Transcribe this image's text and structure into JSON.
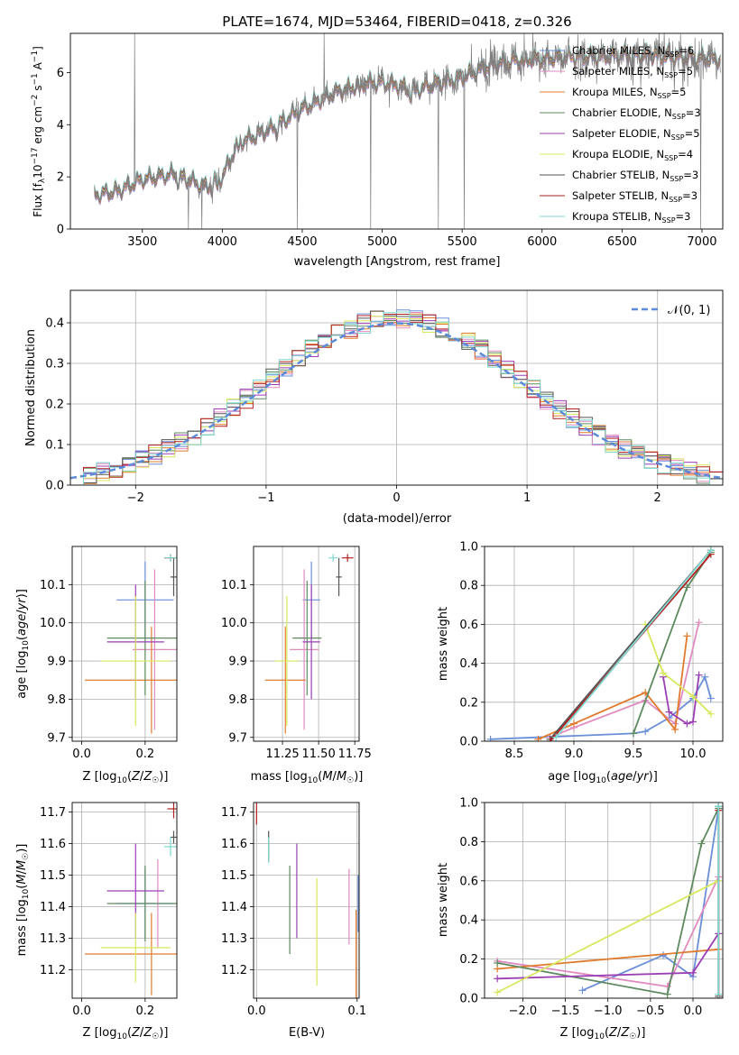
{
  "figure_title": "PLATE=1674, MJD=53464, FIBERID=0418, z=0.326",
  "colors": {
    "Chabrier MILES": "#6a8fd8",
    "Salpeter MILES": "#e08bc0",
    "Kroupa MILES": "#e07b2e",
    "Chabrier ELODIE": "#5e8a60",
    "Salpeter ELODIE": "#9b3fb5",
    "Kroupa ELODIE": "#d8e85c",
    "Chabrier STELIB": "#555555",
    "Salpeter STELIB": "#b22222",
    "Kroupa STELIB": "#7fd8d0",
    "observed": "#7f7f7f",
    "gaussian": "#5b8bd9"
  },
  "chart_data": [
    {
      "id": "spectrum",
      "type": "line",
      "title": "PLATE=1674, MJD=53464, FIBERID=0418, z=0.326",
      "xlabel": "wavelength [Angstrom, rest frame]",
      "ylabel": "Flux [f_λ 10^-17 erg cm^-2 s^-1 A^-1]",
      "xlim": [
        3050,
        7130
      ],
      "ylim": [
        0,
        7.5
      ],
      "xticks": [
        3500,
        4000,
        4500,
        5000,
        5500,
        6000,
        6500,
        7000
      ],
      "yticks": [
        0,
        2,
        4,
        6
      ],
      "grid": false,
      "legend_position": "top-right",
      "legend": [
        {
          "label": "Chabrier MILES, N_SSP=6",
          "color": "#6a8fd8"
        },
        {
          "label": "Salpeter MILES, N_SSP=5",
          "color": "#e08bc0"
        },
        {
          "label": "Kroupa MILES, N_SSP=5",
          "color": "#e07b2e"
        },
        {
          "label": "Chabrier ELODIE, N_SSP=3",
          "color": "#5e8a60"
        },
        {
          "label": "Salpeter ELODIE, N_SSP=5",
          "color": "#9b3fb5"
        },
        {
          "label": "Kroupa ELODIE, N_SSP=4",
          "color": "#d8e85c"
        },
        {
          "label": "Chabrier STELIB, N_SSP=3",
          "color": "#555555"
        },
        {
          "label": "Salpeter STELIB, N_SSP=3",
          "color": "#b22222"
        },
        {
          "label": "Kroupa STELIB, N_SSP=3",
          "color": "#7fd8d0"
        }
      ],
      "continuum": {
        "x": [
          3200,
          3350,
          3500,
          3700,
          3900,
          4000,
          4100,
          4300,
          4500,
          4700,
          4800,
          4900,
          5000,
          5100,
          5200,
          5300,
          5500,
          5700,
          5900,
          6000,
          6200,
          6400,
          6600,
          6800,
          7100
        ],
        "y": [
          1.3,
          1.45,
          1.9,
          2.1,
          1.6,
          2.0,
          3.3,
          3.8,
          4.6,
          5.2,
          5.4,
          5.6,
          5.6,
          5.5,
          5.3,
          5.5,
          5.8,
          6.3,
          6.5,
          6.5,
          6.6,
          6.6,
          6.7,
          6.6,
          6.5
        ]
      }
    },
    {
      "id": "residuals",
      "type": "line",
      "xlabel": "(data-model)/error",
      "ylabel": "Normed distribution",
      "xlim": [
        -2.5,
        2.5
      ],
      "ylim": [
        0,
        0.48
      ],
      "xticks": [
        -2,
        -1,
        0,
        1,
        2
      ],
      "yticks": [
        0.0,
        0.1,
        0.2,
        0.3,
        0.4
      ],
      "grid": true,
      "legend_position": "top-right",
      "legend": [
        {
          "label": "𝒩(0, 1)",
          "color": "#5b8bd9",
          "dashed": true
        }
      ],
      "gaussian": {
        "mean": 0,
        "sigma": 1
      }
    },
    {
      "id": "age-vs-Z",
      "type": "scatter",
      "xlabel": "Z [log10(Z/Z☉)]",
      "ylabel": "age  [log10(age/yr)]",
      "xlim": [
        -0.03,
        0.3
      ],
      "ylim": [
        9.69,
        10.2
      ],
      "xticks": [
        0.0,
        0.2
      ],
      "yticks": [
        9.7,
        9.8,
        9.9,
        10.0,
        10.1
      ],
      "grid": true,
      "series": [
        {
          "model": "Chabrier MILES",
          "x": 0.2,
          "xerr": 0.09,
          "y": 10.06,
          "yerr": 0.1
        },
        {
          "model": "Salpeter MILES",
          "x": 0.23,
          "xerr": 0.07,
          "y": 9.93,
          "yerr": 0.21
        },
        {
          "model": "Kroupa MILES",
          "x": 0.22,
          "xerr": 0.21,
          "y": 9.85,
          "yerr": 0.14
        },
        {
          "model": "Chabrier ELODIE",
          "x": 0.2,
          "xerr": 0.12,
          "y": 9.96,
          "yerr": 0.15
        },
        {
          "model": "Salpeter ELODIE",
          "x": 0.17,
          "xerr": 0.09,
          "y": 9.95,
          "yerr": 0.15
        },
        {
          "model": "Kroupa ELODIE",
          "x": 0.17,
          "xerr": 0.11,
          "y": 9.9,
          "yerr": 0.17
        },
        {
          "model": "Chabrier STELIB",
          "x": 0.29,
          "xerr": 0.01,
          "y": 10.12,
          "yerr": 0.05
        },
        {
          "model": "Salpeter STELIB",
          "x": 0.28,
          "xerr": 0.02,
          "y": 10.17,
          "yerr": 0.01
        },
        {
          "model": "Kroupa STELIB",
          "x": 0.28,
          "xerr": 0.02,
          "y": 10.17,
          "yerr": 0.01
        }
      ]
    },
    {
      "id": "age-vs-mass",
      "type": "scatter",
      "xlabel": "mass [log10(M/M☉)]",
      "ylabel": "",
      "xlim": [
        11.05,
        11.78
      ],
      "ylim": [
        9.69,
        10.2
      ],
      "xticks": [
        11.25,
        11.5,
        11.75
      ],
      "yticks": [
        9.7,
        9.8,
        9.9,
        10.0,
        10.1
      ],
      "grid": true,
      "series": [
        {
          "model": "Chabrier MILES",
          "x": 11.45,
          "xerr": 0.06,
          "y": 10.06,
          "yerr": 0.1
        },
        {
          "model": "Salpeter MILES",
          "x": 11.4,
          "xerr": 0.1,
          "y": 9.93,
          "yerr": 0.21
        },
        {
          "model": "Kroupa MILES",
          "x": 11.27,
          "xerr": 0.14,
          "y": 9.85,
          "yerr": 0.14
        },
        {
          "model": "Chabrier ELODIE",
          "x": 11.42,
          "xerr": 0.1,
          "y": 9.96,
          "yerr": 0.15
        },
        {
          "model": "Salpeter ELODIE",
          "x": 11.45,
          "xerr": 0.06,
          "y": 9.95,
          "yerr": 0.15
        },
        {
          "model": "Kroupa ELODIE",
          "x": 11.28,
          "xerr": 0.08,
          "y": 9.9,
          "yerr": 0.17
        },
        {
          "model": "Chabrier STELIB",
          "x": 11.64,
          "xerr": 0.02,
          "y": 10.12,
          "yerr": 0.05
        },
        {
          "model": "Salpeter STELIB",
          "x": 11.7,
          "xerr": 0.04,
          "y": 10.17,
          "yerr": 0.01
        },
        {
          "model": "Kroupa STELIB",
          "x": 11.6,
          "xerr": 0.03,
          "y": 10.17,
          "yerr": 0.01
        }
      ]
    },
    {
      "id": "weight-vs-age",
      "type": "line",
      "xlabel": "age  [log10(age/yr)]",
      "ylabel": "mass weight",
      "xlim": [
        8.25,
        10.25
      ],
      "ylim": [
        0,
        1
      ],
      "xticks": [
        8.5,
        9.0,
        9.5,
        10.0
      ],
      "yticks": [
        0.0,
        0.2,
        0.4,
        0.6,
        0.8,
        1.0
      ],
      "grid": true,
      "series": [
        {
          "model": "Chabrier MILES",
          "x": [
            8.3,
            9.5,
            9.6,
            9.8,
            10.0,
            10.1,
            10.15
          ],
          "y": [
            0.01,
            0.04,
            0.05,
            0.12,
            0.22,
            0.33,
            0.22
          ]
        },
        {
          "model": "Salpeter MILES",
          "x": [
            8.8,
            9.0,
            9.6,
            9.85,
            10.05
          ],
          "y": [
            0.02,
            0.07,
            0.21,
            0.09,
            0.61
          ]
        },
        {
          "model": "Kroupa MILES",
          "x": [
            8.7,
            9.0,
            9.6,
            9.85,
            9.95
          ],
          "y": [
            0.01,
            0.09,
            0.25,
            0.06,
            0.54
          ]
        },
        {
          "model": "Chabrier ELODIE",
          "x": [
            9.5,
            9.95,
            10.15
          ],
          "y": [
            0.04,
            0.79,
            0.97
          ]
        },
        {
          "model": "Salpeter ELODIE",
          "x": [
            9.75,
            9.8,
            9.95,
            10.0,
            10.05
          ],
          "y": [
            0.33,
            0.15,
            0.09,
            0.1,
            0.34
          ]
        },
        {
          "model": "Kroupa ELODIE",
          "x": [
            9.6,
            9.75,
            10.0,
            10.15
          ],
          "y": [
            0.6,
            0.35,
            0.23,
            0.14
          ]
        },
        {
          "model": "Chabrier STELIB",
          "x": [
            8.8,
            10.15
          ],
          "y": [
            0.01,
            0.98
          ]
        },
        {
          "model": "Salpeter STELIB",
          "x": [
            8.8,
            10.15
          ],
          "y": [
            0.0,
            0.96
          ]
        },
        {
          "model": "Kroupa STELIB",
          "x": [
            8.85,
            10.15
          ],
          "y": [
            0.02,
            0.98
          ]
        }
      ]
    },
    {
      "id": "mass-vs-Z",
      "type": "scatter",
      "xlabel": "Z [log10(Z/Z☉)]",
      "ylabel": "mass [log10(M/M☉)]",
      "xlim": [
        -0.03,
        0.3
      ],
      "ylim": [
        11.11,
        11.73
      ],
      "xticks": [
        0.0,
        0.2
      ],
      "yticks": [
        11.2,
        11.3,
        11.4,
        11.5,
        11.6,
        11.7
      ],
      "grid": true,
      "series": [
        {
          "model": "Chabrier MILES",
          "x": 0.2,
          "xerr": 0.09,
          "y": 11.41,
          "yerr": 0.11
        },
        {
          "model": "Salpeter MILES",
          "x": 0.24,
          "xerr": 0.0,
          "y": 11.41,
          "yerr": 0.14
        },
        {
          "model": "Kroupa MILES",
          "x": 0.22,
          "xerr": 0.21,
          "y": 11.25,
          "yerr": 0.13
        },
        {
          "model": "Chabrier ELODIE",
          "x": 0.2,
          "xerr": 0.12,
          "y": 11.41,
          "yerr": 0.12
        },
        {
          "model": "Salpeter ELODIE",
          "x": 0.17,
          "xerr": 0.09,
          "y": 11.45,
          "yerr": 0.15
        },
        {
          "model": "Kroupa ELODIE",
          "x": 0.17,
          "xerr": 0.11,
          "y": 11.27,
          "yerr": 0.11
        },
        {
          "model": "Chabrier STELIB",
          "x": 0.29,
          "xerr": 0.01,
          "y": 11.62,
          "yerr": 0.02
        },
        {
          "model": "Salpeter STELIB",
          "x": 0.29,
          "xerr": 0.02,
          "y": 11.71,
          "yerr": 0.03
        },
        {
          "model": "Kroupa STELIB",
          "x": 0.28,
          "xerr": 0.02,
          "y": 11.59,
          "yerr": 0.03
        }
      ]
    },
    {
      "id": "mass-vs-ebv",
      "type": "scatter",
      "xlabel": "E(B-V)",
      "ylabel": "",
      "xlim": [
        -0.003,
        0.102
      ],
      "ylim": [
        11.11,
        11.73
      ],
      "xticks": [
        0.0,
        0.1
      ],
      "yticks": [
        11.2,
        11.3,
        11.4,
        11.5,
        11.6,
        11.7
      ],
      "grid": true,
      "series": [
        {
          "model": "Chabrier MILES",
          "x": 0.101,
          "y": 11.41,
          "yerr": 0.09
        },
        {
          "model": "Salpeter MILES",
          "x": 0.092,
          "y": 11.4,
          "yerr": 0.12
        },
        {
          "model": "Kroupa MILES",
          "x": 0.099,
          "y": 11.25,
          "yerr": 0.14
        },
        {
          "model": "Chabrier ELODIE",
          "x": 0.033,
          "y": 11.39,
          "yerr": 0.14
        },
        {
          "model": "Salpeter ELODIE",
          "x": 0.04,
          "y": 11.45,
          "yerr": 0.15
        },
        {
          "model": "Kroupa ELODIE",
          "x": 0.06,
          "y": 11.32,
          "yerr": 0.17
        },
        {
          "model": "Chabrier STELIB",
          "x": 0.012,
          "y": 11.59,
          "yerr": 0.05
        },
        {
          "model": "Salpeter STELIB",
          "x": 0.0,
          "y": 11.7,
          "yerr": 0.04
        },
        {
          "model": "Kroupa STELIB",
          "x": 0.012,
          "y": 11.58,
          "yerr": 0.04
        }
      ]
    },
    {
      "id": "weight-vs-Z",
      "type": "line",
      "xlabel": "Z [log10(Z/Z☉)]",
      "ylabel": "mass weight",
      "xlim": [
        -2.45,
        0.35
      ],
      "ylim": [
        0,
        1
      ],
      "xticks": [
        -2.0,
        -1.5,
        -1.0,
        -0.5,
        0.0
      ],
      "yticks": [
        0.0,
        0.2,
        0.4,
        0.6,
        0.8,
        1.0
      ],
      "grid": true,
      "series": [
        {
          "model": "Chabrier MILES",
          "x": [
            -1.3,
            -0.35,
            0.0,
            0.3
          ],
          "y": [
            0.04,
            0.22,
            0.11,
            0.97
          ]
        },
        {
          "model": "Salpeter MILES",
          "x": [
            -2.3,
            -0.3,
            0.3
          ],
          "y": [
            0.19,
            0.06,
            0.62
          ]
        },
        {
          "model": "Kroupa MILES",
          "x": [
            -2.3,
            0.3
          ],
          "y": [
            0.15,
            0.25
          ]
        },
        {
          "model": "Chabrier ELODIE",
          "x": [
            -2.3,
            -0.3,
            0.1,
            0.3
          ],
          "y": [
            0.18,
            0.02,
            0.79,
            0.97
          ]
        },
        {
          "model": "Salpeter ELODIE",
          "x": [
            -2.3,
            0.0,
            0.3
          ],
          "y": [
            0.1,
            0.13,
            0.33
          ]
        },
        {
          "model": "Kroupa ELODIE",
          "x": [
            -2.3,
            0.3
          ],
          "y": [
            0.03,
            0.6
          ]
        },
        {
          "model": "Chabrier STELIB",
          "x": [
            0.3,
            0.3
          ],
          "y": [
            0.01,
            0.98
          ]
        },
        {
          "model": "Salpeter STELIB",
          "x": [
            0.3,
            0.3
          ],
          "y": [
            0.0,
            0.96
          ]
        },
        {
          "model": "Kroupa STELIB",
          "x": [
            0.3,
            0.3
          ],
          "y": [
            0.02,
            0.98
          ]
        }
      ]
    }
  ]
}
